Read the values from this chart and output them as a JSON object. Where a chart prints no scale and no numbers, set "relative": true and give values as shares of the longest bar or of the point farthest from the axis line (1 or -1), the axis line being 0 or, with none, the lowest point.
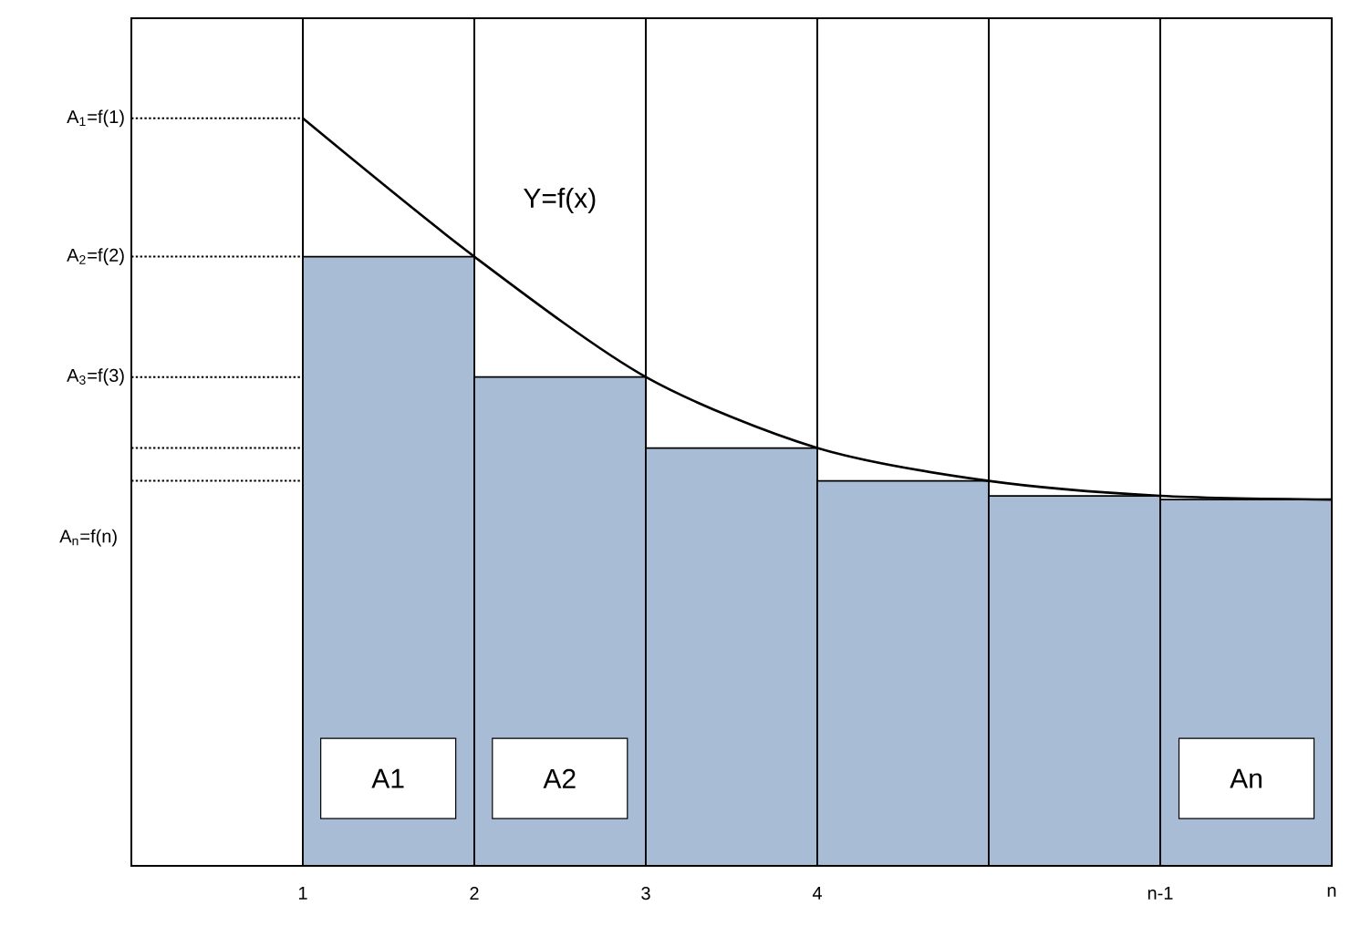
{
  "chart_data": {
    "type": "bar",
    "relative": true,
    "xlim": [
      0,
      7
    ],
    "xticks": [
      1,
      2,
      3,
      4,
      {
        "value": 5,
        "label": null
      },
      {
        "value": 6,
        "label": "n-1"
      },
      {
        "value": 7,
        "label": "n"
      }
    ],
    "grid": "x",
    "series": [
      {
        "color": "#a9bcd6",
        "x": [
          1.5,
          2.5,
          3.5,
          4.5,
          5.5,
          6.5
        ],
        "values": [
          0.815,
          0.654,
          0.559,
          0.515,
          0.495,
          0.49
        ]
      },
      {
        "type": "line",
        "color": "#000000",
        "x": [
          1,
          2,
          3,
          4,
          5,
          6,
          7
        ],
        "values": [
          1,
          0.815,
          0.654,
          0.559,
          0.515,
          0.495,
          0.49
        ]
      }
    ],
    "ref_lines": [
      {
        "axis": "y",
        "value": 1,
        "label": "A$_{1}$=f(1)",
        "line_style": "dotted"
      },
      {
        "axis": "y",
        "value": 0.815,
        "label": "A$_{2}$=f(2)",
        "line_style": "dotted"
      },
      {
        "axis": "y",
        "value": 0.654,
        "label": "A$_{3}$=f(3)",
        "line_style": "dotted"
      },
      {
        "axis": "y",
        "value": 0.559,
        "line_style": "dotted"
      },
      {
        "axis": "y",
        "value": 0.515,
        "line_style": "dotted"
      }
    ],
    "annotations": [
      "Y=f(x)",
      "A1",
      "A2",
      "An",
      "A$_{n}$=f(n)"
    ]
  }
}
